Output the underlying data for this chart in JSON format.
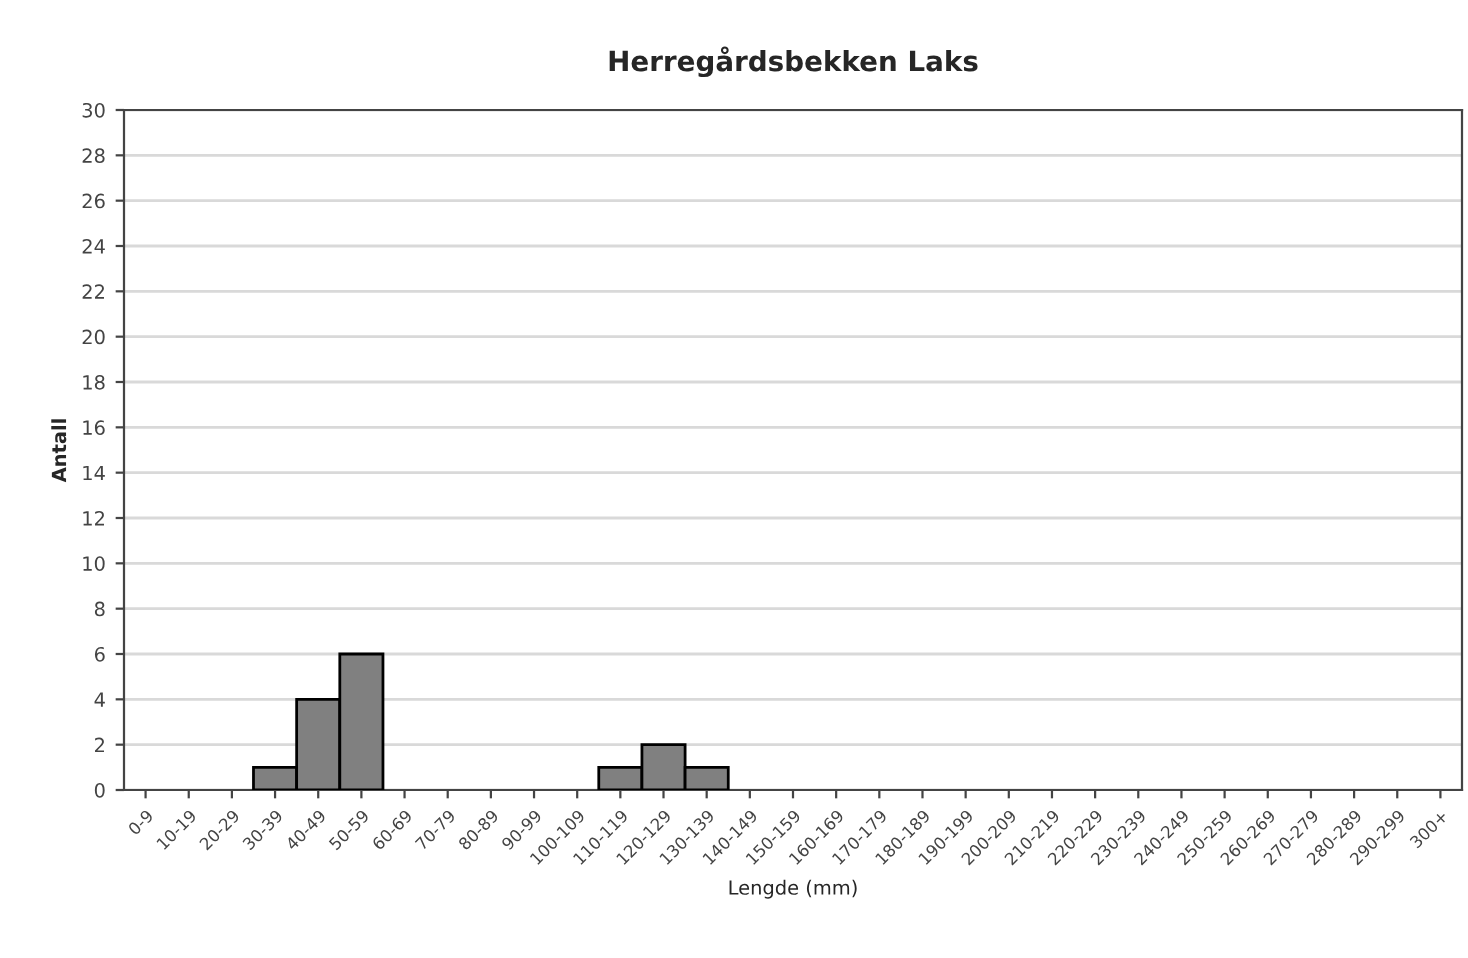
{
  "chart_data": {
    "type": "bar",
    "title": "Herregårdsbekken Laks",
    "xlabel": "Lengde (mm)",
    "ylabel": "Antall",
    "categories": [
      "0-9",
      "10-19",
      "20-29",
      "30-39",
      "40-49",
      "50-59",
      "60-69",
      "70-79",
      "80-89",
      "90-99",
      "100-109",
      "110-119",
      "120-129",
      "130-139",
      "140-149",
      "150-159",
      "160-169",
      "170-179",
      "180-189",
      "190-199",
      "200-209",
      "210-219",
      "220-229",
      "230-239",
      "240-249",
      "250-259",
      "260-269",
      "270-279",
      "280-289",
      "290-299",
      "300+"
    ],
    "values": [
      0,
      0,
      0,
      1,
      4,
      6,
      0,
      0,
      0,
      0,
      0,
      1,
      2,
      1,
      0,
      0,
      0,
      0,
      0,
      0,
      0,
      0,
      0,
      0,
      0,
      0,
      0,
      0,
      0,
      0,
      0
    ],
    "color": "#808080",
    "ylim": [
      0,
      30
    ],
    "yticks": [
      0,
      2,
      4,
      6,
      8,
      10,
      12,
      14,
      16,
      18,
      20,
      22,
      24,
      26,
      28,
      30
    ],
    "grid": "y"
  }
}
